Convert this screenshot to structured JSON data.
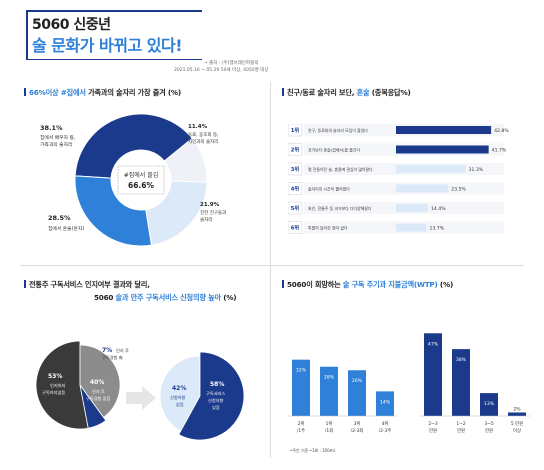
{
  "header": {
    "title_line1": "5060 신중년",
    "title_line2": "술 문화가 바뀌고 있다!",
    "note_line1": "• 출처 : (주)엠브레인퍼블릭",
    "note_line2": "2021.05.16 ~ 05.29 50세 이상, 4050명 대상"
  },
  "sections": {
    "s1": {
      "pre": "66%이상 #집에서",
      "post": " 가족과의 술자리 가장 즐겨 (%)"
    },
    "s2": {
      "pre": "친구/동료 술자리 보단, ",
      "hl": "혼술",
      "post": " (중복응답%)"
    },
    "s3": {
      "line1": "전통주 구독서비스 인지여부 결과와 달리,",
      "line2_pre": "5060 ",
      "line2_hl": "술과 안주 구독서비스 신청의향 높아",
      "line2_post": " (%)"
    },
    "s4": {
      "pre": "5060이 희망하는 ",
      "hl": "술 구독 주기과 지불금액(WTP)",
      "post": " (%)"
    }
  },
  "donut": {
    "center_label": "#집에서 즐김",
    "center_value": "66.6%",
    "labels": [
      {
        "pct": "38.1%",
        "line1": "집에서 배우자 등,",
        "line2": "가족과의 술자리"
      },
      {
        "pct": "11.4%",
        "line1": "동료, 동호회 등,",
        "line2": "지인과의 술자리"
      },
      {
        "pct": "21.9%",
        "line1": "친한 친구들과",
        "line2": "술자리"
      },
      {
        "pct": "28.5%",
        "line1": "집에서 혼술(혼자)",
        "line2": ""
      }
    ]
  },
  "ranking": {
    "items": [
      {
        "rank": "1위",
        "label": "친구, 동료와의 술자리 모임이 줄었다",
        "pct": "42.8%"
      },
      {
        "rank": "2위",
        "label": "과거보다 혼술(집에서)을 즐긴다",
        "pct": "41.7%"
      },
      {
        "rank": "3위",
        "label": "몇 잔들이던 술, 혼잘에 관심이 많아졌다",
        "pct": "31.3%"
      },
      {
        "rank": "4위",
        "label": "술자리의 시간이 짧아졌다",
        "pct": "23.5%"
      },
      {
        "rank": "5위",
        "label": "와인, 전통주 등 과거보다 다다양해졌다",
        "pct": "14.4%"
      },
      {
        "rank": "6위",
        "label": "특별히 달라진 점이 없다",
        "pct": "13.7%"
      }
    ]
  },
  "awareness": {
    "dark_pct": "53%",
    "dark_l1": "인지하지",
    "dark_l2": "구독하지않음",
    "gray_pct": "40%",
    "gray_l1": "인지 후",
    "gray_l2": "구독경험 없음",
    "small_pct": "7%",
    "small_l1": "인지 후",
    "small_l2": "구독경험 有"
  },
  "intention": {
    "light_pct": "42%",
    "light_l1": "신청의향",
    "light_l2": "없음",
    "dark_pct": "58%",
    "dark_l1": "구독서비스",
    "dark_l2": "신청의향",
    "dark_l3": "있음"
  },
  "cycle": {
    "bars": [
      {
        "val": "32%",
        "l1": "2위",
        "l2": "/1주"
      },
      {
        "val": "28%",
        "l1": "1위",
        "l2": "/1회"
      },
      {
        "val": "26%",
        "l1": "3위",
        "l2": "/2-3회"
      },
      {
        "val": "14%",
        "l1": "4위",
        "l2": "/2-3주"
      }
    ],
    "note": "•주인 기준   •1회 : 350ml"
  },
  "wtp": {
    "bars": [
      {
        "val": "47%",
        "l1": "2~3",
        "l2": "만원"
      },
      {
        "val": "38%",
        "l1": "1~2",
        "l2": "만원"
      },
      {
        "val": "13%",
        "l1": "3~5",
        "l2": "만원"
      },
      {
        "val": "2%",
        "l1": "5 만원",
        "l2": "이상"
      }
    ]
  },
  "chart_data": [
    {
      "type": "pie",
      "categories": [
        "집에서 배우자 등, 가족과의 술자리",
        "동료, 동호회 등, 지인과의 술자리",
        "친한 친구들과 술자리",
        "집에서 혼술(혼자)"
      ],
      "values": [
        38.1,
        11.4,
        21.9,
        28.5
      ]
    },
    {
      "type": "bar",
      "categories": [
        "친구, 동료와의 술자리 모임이 줄었다",
        "과거보다 혼술(집에서)을 즐긴다",
        "몇 잔들이던 술, 혼잘에 관심이 많아졌다",
        "술자리의 시간이 짧아졌다",
        "와인, 전통주 등 과거보다 다다양해졌다",
        "특별히 달라진 점이 없다"
      ],
      "values": [
        42.8,
        41.7,
        31.3,
        23.5,
        14.4,
        13.7
      ],
      "xlim": [
        0,
        45
      ]
    },
    {
      "type": "pie",
      "categories": [
        "인지하지 구독하지않음",
        "인지 후 구독경험 없음",
        "인지 후 구독경험 有"
      ],
      "values": [
        53,
        40,
        7
      ]
    },
    {
      "type": "pie",
      "categories": [
        "신청의향 없음",
        "구독서비스 신청의향 있음"
      ],
      "values": [
        42,
        58
      ]
    },
    {
      "type": "bar",
      "categories": [
        "2위/1주",
        "1위/1회",
        "3위/2-3회",
        "4위/2-3주"
      ],
      "values": [
        32,
        28,
        26,
        14
      ],
      "ylim": [
        0,
        50
      ]
    },
    {
      "type": "bar",
      "categories": [
        "2~3 만원",
        "1~2 만원",
        "3~5 만원",
        "5 만원 이상"
      ],
      "values": [
        47,
        38,
        13,
        2
      ],
      "ylim": [
        0,
        50
      ]
    }
  ],
  "colors": {
    "navy": "#1b3a8c",
    "blue": "#2f80d8",
    "light": "#dbe9f8",
    "pale": "#eef2f7",
    "dark": "#3a3a3a",
    "gray": "#8c8c8c"
  }
}
